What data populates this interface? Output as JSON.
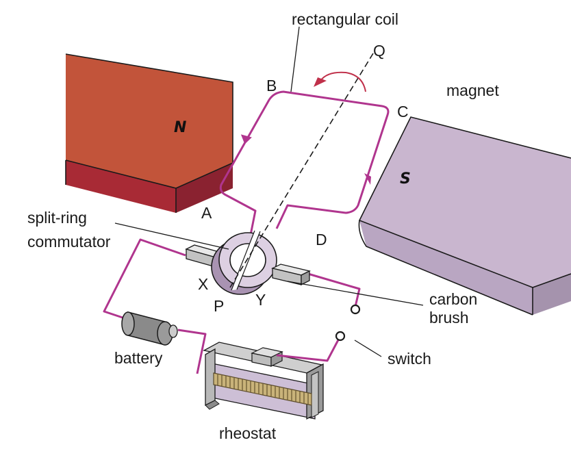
{
  "labels": {
    "rectangular_coil": "rectangular coil",
    "axis_end": "Q",
    "axis_start": "P",
    "corner_a": "A",
    "corner_b": "B",
    "corner_c": "C",
    "corner_d": "D",
    "half_ring_x": "X",
    "half_ring_y": "Y",
    "magnet": "magnet",
    "north_pole": "N",
    "south_pole": "S",
    "commutator_line1": "split-ring",
    "commutator_line2": "commutator",
    "brush_line1": "carbon",
    "brush_line2": "brush",
    "battery": "battery",
    "switch": "switch",
    "rheostat": "rheostat"
  },
  "colors": {
    "wire": "#b0358e",
    "north_top": "#c2543a",
    "north_front": "#a82a35",
    "north_side": "#8a2230",
    "south_top": "#c9b6cf",
    "south_front": "#b9a6c2",
    "south_side": "#a593ad",
    "rotation_arrow": "#c0304a"
  },
  "icons": {
    "rotation": "curved-arrow-icon",
    "current": "triangle-arrow-icon"
  }
}
